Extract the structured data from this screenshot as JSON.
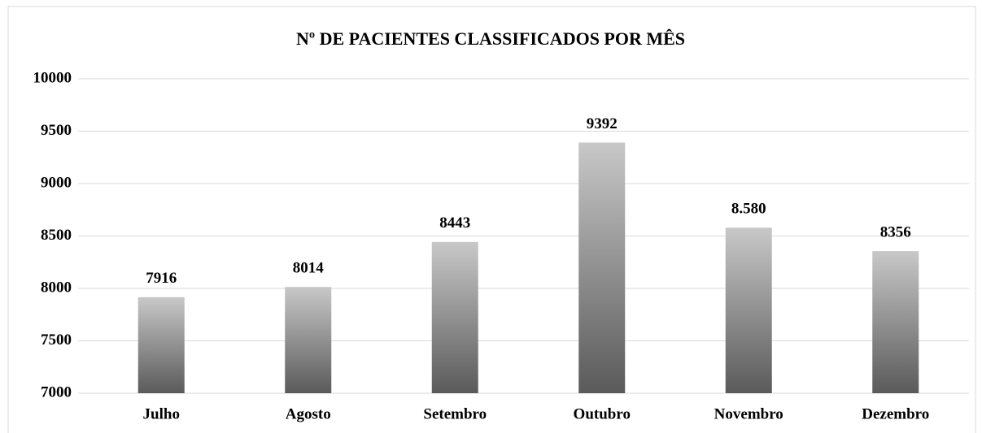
{
  "chart_data": {
    "type": "bar",
    "title": "Nº DE PACIENTES CLASSIFICADOS POR MÊS",
    "categories": [
      "Julho",
      "Agosto",
      "Setembro",
      "Outubro",
      "Novembro",
      "Dezembro"
    ],
    "values": [
      7916,
      8014,
      8443,
      9392,
      8580,
      8356
    ],
    "value_labels": [
      "7916",
      "8014",
      "8443",
      "9392",
      "8.580",
      "8356"
    ],
    "color": [
      "#c8c8c8",
      "#5a5a5a"
    ],
    "ylim": [
      7000,
      10000
    ],
    "yticks": [
      7000,
      7500,
      8000,
      8500,
      9000,
      9500,
      10000
    ],
    "grid": true
  }
}
